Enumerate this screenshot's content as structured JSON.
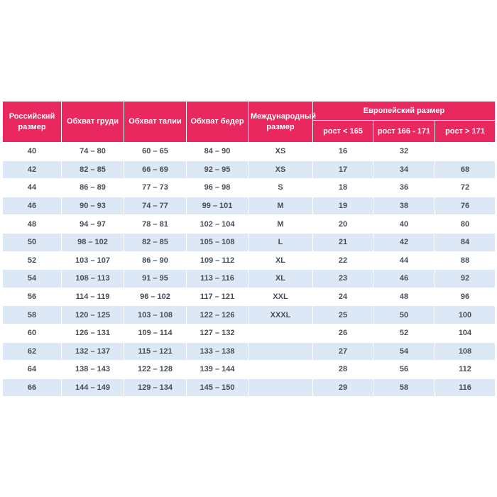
{
  "page": {
    "background_color": "#ffffff"
  },
  "table": {
    "accent_color": "#E8285E",
    "stripe_color": "#DCE8F5",
    "header_text_color": "#ffffff",
    "body_text_color": "#474E5A",
    "header": {
      "russian_size": "Российский размер",
      "chest": "Обхват груди",
      "waist": "Обхват талии",
      "hips": "Обхват бедер",
      "international_size": "Международный размер",
      "european_size": "Европейский размер",
      "height_lt_165": "рост < 165",
      "height_166_171": "рост 166 - 171",
      "height_gt_171": "рост > 171"
    },
    "rows": [
      [
        "40",
        "74 – 80",
        "60 – 65",
        "84 – 90",
        "XS",
        "16",
        "32",
        ""
      ],
      [
        "42",
        "82 – 85",
        "66 – 69",
        "92 – 95",
        "XS",
        "17",
        "34",
        "68"
      ],
      [
        "44",
        "86 – 89",
        "77 – 73",
        "96 – 98",
        "S",
        "18",
        "36",
        "72"
      ],
      [
        "46",
        "90 – 93",
        "74 – 77",
        "99 – 101",
        "M",
        "19",
        "38",
        "76"
      ],
      [
        "48",
        "94 – 97",
        "78 – 81",
        "102 – 104",
        "M",
        "20",
        "40",
        "80"
      ],
      [
        "50",
        "98 – 102",
        "82 – 85",
        "105 – 108",
        "L",
        "21",
        "42",
        "84"
      ],
      [
        "52",
        "103 – 107",
        "86 – 90",
        "109 – 112",
        "XL",
        "22",
        "44",
        "88"
      ],
      [
        "54",
        "108 – 113",
        "91 – 95",
        "113 – 116",
        "XL",
        "23",
        "46",
        "92"
      ],
      [
        "56",
        "114 – 119",
        "96 – 102",
        "117 – 121",
        "XXL",
        "24",
        "48",
        "96"
      ],
      [
        "58",
        "120 – 125",
        "103 – 108",
        "122 – 126",
        "XXXL",
        "25",
        "50",
        "100"
      ],
      [
        "60",
        "126 – 131",
        "109 – 114",
        "127 – 132",
        "",
        "26",
        "52",
        "104"
      ],
      [
        "62",
        "132 – 137",
        "115 – 121",
        "133 – 138",
        "",
        "27",
        "54",
        "108"
      ],
      [
        "64",
        "138 – 143",
        "122 – 128",
        "139 – 144",
        "",
        "28",
        "56",
        "112"
      ],
      [
        "66",
        "144 – 149",
        "129 – 134",
        "145 – 150",
        "",
        "29",
        "58",
        "116"
      ]
    ]
  }
}
